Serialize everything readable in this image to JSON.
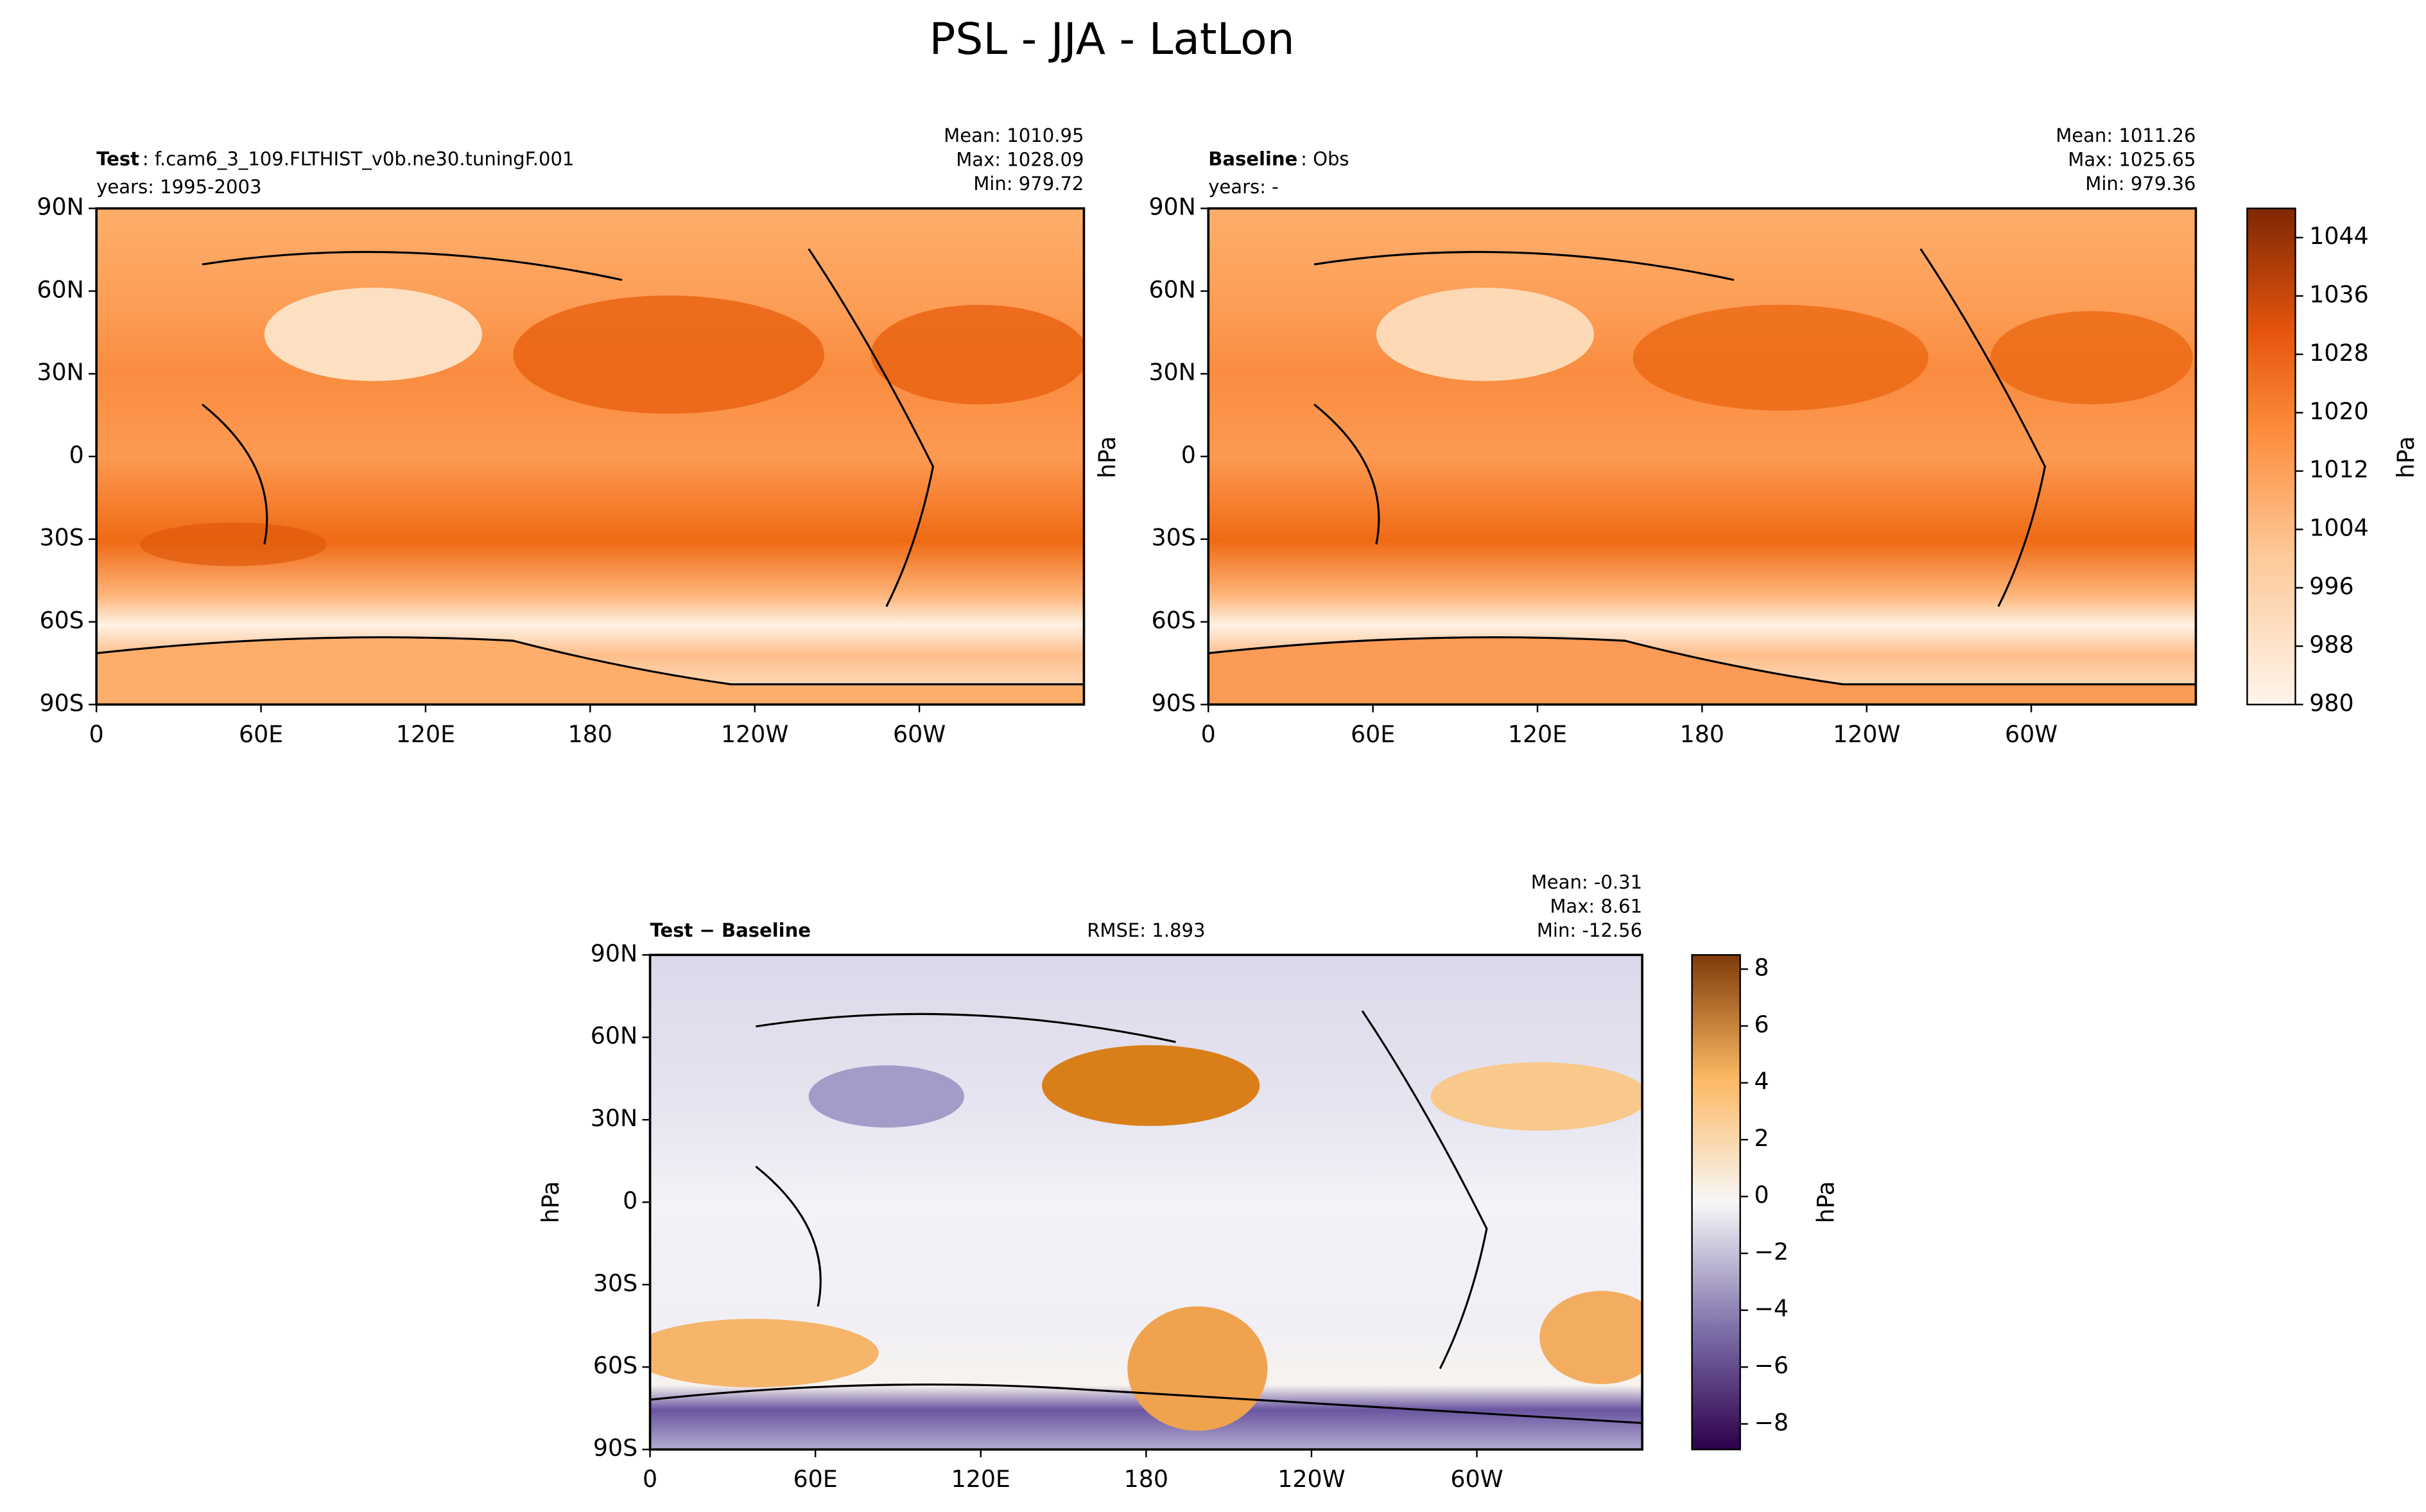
{
  "title": "PSL - JJA - LatLon",
  "panels": [
    {
      "label": "Test",
      "text": ": f.cam6_3_109.FLTHIST_v0b.ne30.tuningF.001",
      "years": "years: 1995-2003",
      "stats": [
        "Mean: 1010.95",
        "Max: 1028.09",
        "Min: 979.72"
      ]
    },
    {
      "label": "Baseline",
      "text": ": Obs",
      "years": "years: -",
      "stats": [
        "Mean: 1011.26",
        "Max: 1025.65",
        "Min: 979.36"
      ]
    },
    {
      "label": "Test − Baseline",
      "rmse": "RMSE: 1.893",
      "stats": [
        "Mean: -0.31",
        "Max:  8.61",
        "Min: -12.56"
      ]
    }
  ],
  "xlim": [
    0,
    360
  ],
  "ylim": [
    -90,
    90
  ],
  "lat_ticks": [
    {
      "value": 90,
      "label": "90N"
    },
    {
      "value": 60,
      "label": "60N"
    },
    {
      "value": 30,
      "label": "30N"
    },
    0,
    {
      "value": -30,
      "label": "30S"
    },
    {
      "value": -60,
      "label": "60S"
    },
    {
      "value": -90,
      "label": "90S"
    }
  ],
  "lon_ticks": [
    0,
    {
      "value": 60,
      "label": "60E"
    },
    {
      "value": 120,
      "label": "120E"
    },
    180,
    {
      "value": 240,
      "label": "120W"
    },
    {
      "value": 300,
      "label": "60W"
    }
  ],
  "unit": "hPa",
  "colorbars": [
    {
      "lim": [
        980,
        1048
      ],
      "ticks": [
        980,
        988,
        996,
        1004,
        1012,
        1020,
        1028,
        1036,
        1044
      ]
    },
    {
      "lim": [
        -8.9,
        8.5
      ],
      "ticks": [
        {
          "value": -8,
          "label": "−8"
        },
        {
          "value": -6,
          "label": "−6"
        },
        {
          "value": -4,
          "label": "−4"
        },
        {
          "value": -2,
          "label": "−2"
        },
        0,
        2,
        4,
        6,
        8
      ]
    }
  ]
}
